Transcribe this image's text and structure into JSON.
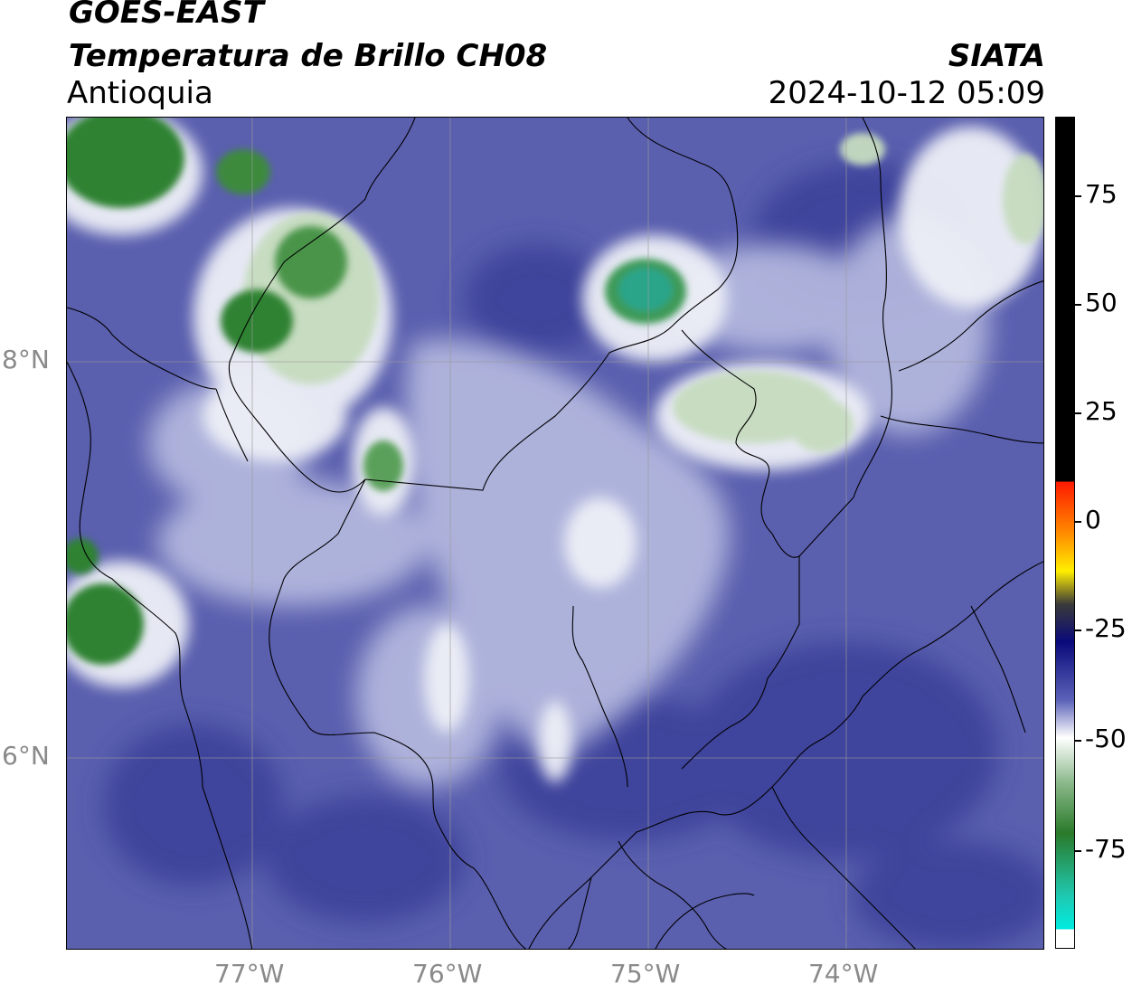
{
  "header": {
    "satellite": "GOES-EAST",
    "product": "Temperatura de Brillo CH08",
    "region": "Antioquia",
    "institution": "SIATA",
    "datetime": "2024-10-12 05:09"
  },
  "map": {
    "lon_labels": [
      "77°W",
      "76°W",
      "75°W",
      "74°W"
    ],
    "lat_labels": [
      "8°N",
      "6°N"
    ],
    "colors": {
      "background_blue": "#5a5fae",
      "dark_blue": "#3a3f98",
      "white": "#eef0f7",
      "light_green": "#c6dcbf",
      "green": "#3c8a3c",
      "teal": "#2aa58a"
    }
  },
  "colorbar": {
    "tick_labels": [
      "75",
      "50",
      "25",
      "0",
      "-25",
      "-50",
      "-75"
    ],
    "colors": {
      "black": "#000000",
      "red": "#ff2200",
      "orange": "#ff9900",
      "yellow": "#ffff00",
      "navy": "#0a0a7a",
      "white": "#ffffff",
      "green": "#2a7a2a",
      "cyan": "#00e5e0"
    }
  }
}
